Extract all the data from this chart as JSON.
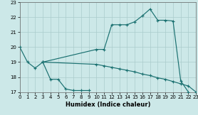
{
  "xlabel": "Humidex (Indice chaleur)",
  "bg_color": "#cce8e8",
  "grid_color": "#aacccc",
  "line_color": "#1a7070",
  "xlim": [
    0,
    23
  ],
  "ylim": [
    17,
    23
  ],
  "yticks": [
    17,
    18,
    19,
    20,
    21,
    22,
    23
  ],
  "xticks": [
    0,
    1,
    2,
    3,
    4,
    5,
    6,
    7,
    8,
    9,
    10,
    11,
    12,
    13,
    14,
    15,
    16,
    17,
    18,
    19,
    20,
    21,
    22,
    23
  ],
  "curve1_x": [
    0,
    1,
    2,
    3,
    4,
    5,
    6,
    7,
    8,
    9
  ],
  "curve1_y": [
    20.0,
    19.0,
    18.6,
    19.0,
    17.85,
    17.85,
    17.2,
    17.1,
    17.1,
    17.1
  ],
  "curve2_x": [
    3,
    10,
    11,
    12,
    13,
    14,
    15,
    16,
    17,
    18,
    19,
    20,
    21,
    22
  ],
  "curve2_y": [
    19.0,
    19.85,
    19.85,
    21.5,
    21.5,
    21.5,
    21.7,
    22.1,
    22.55,
    21.8,
    21.8,
    21.75,
    17.75,
    17.0
  ],
  "curve3_x": [
    3,
    10,
    11,
    12,
    13,
    14,
    15,
    16,
    17,
    18,
    19,
    20,
    21,
    22,
    23
  ],
  "curve3_y": [
    19.0,
    18.85,
    18.75,
    18.65,
    18.55,
    18.45,
    18.35,
    18.2,
    18.1,
    17.95,
    17.85,
    17.7,
    17.55,
    17.4,
    17.0
  ]
}
